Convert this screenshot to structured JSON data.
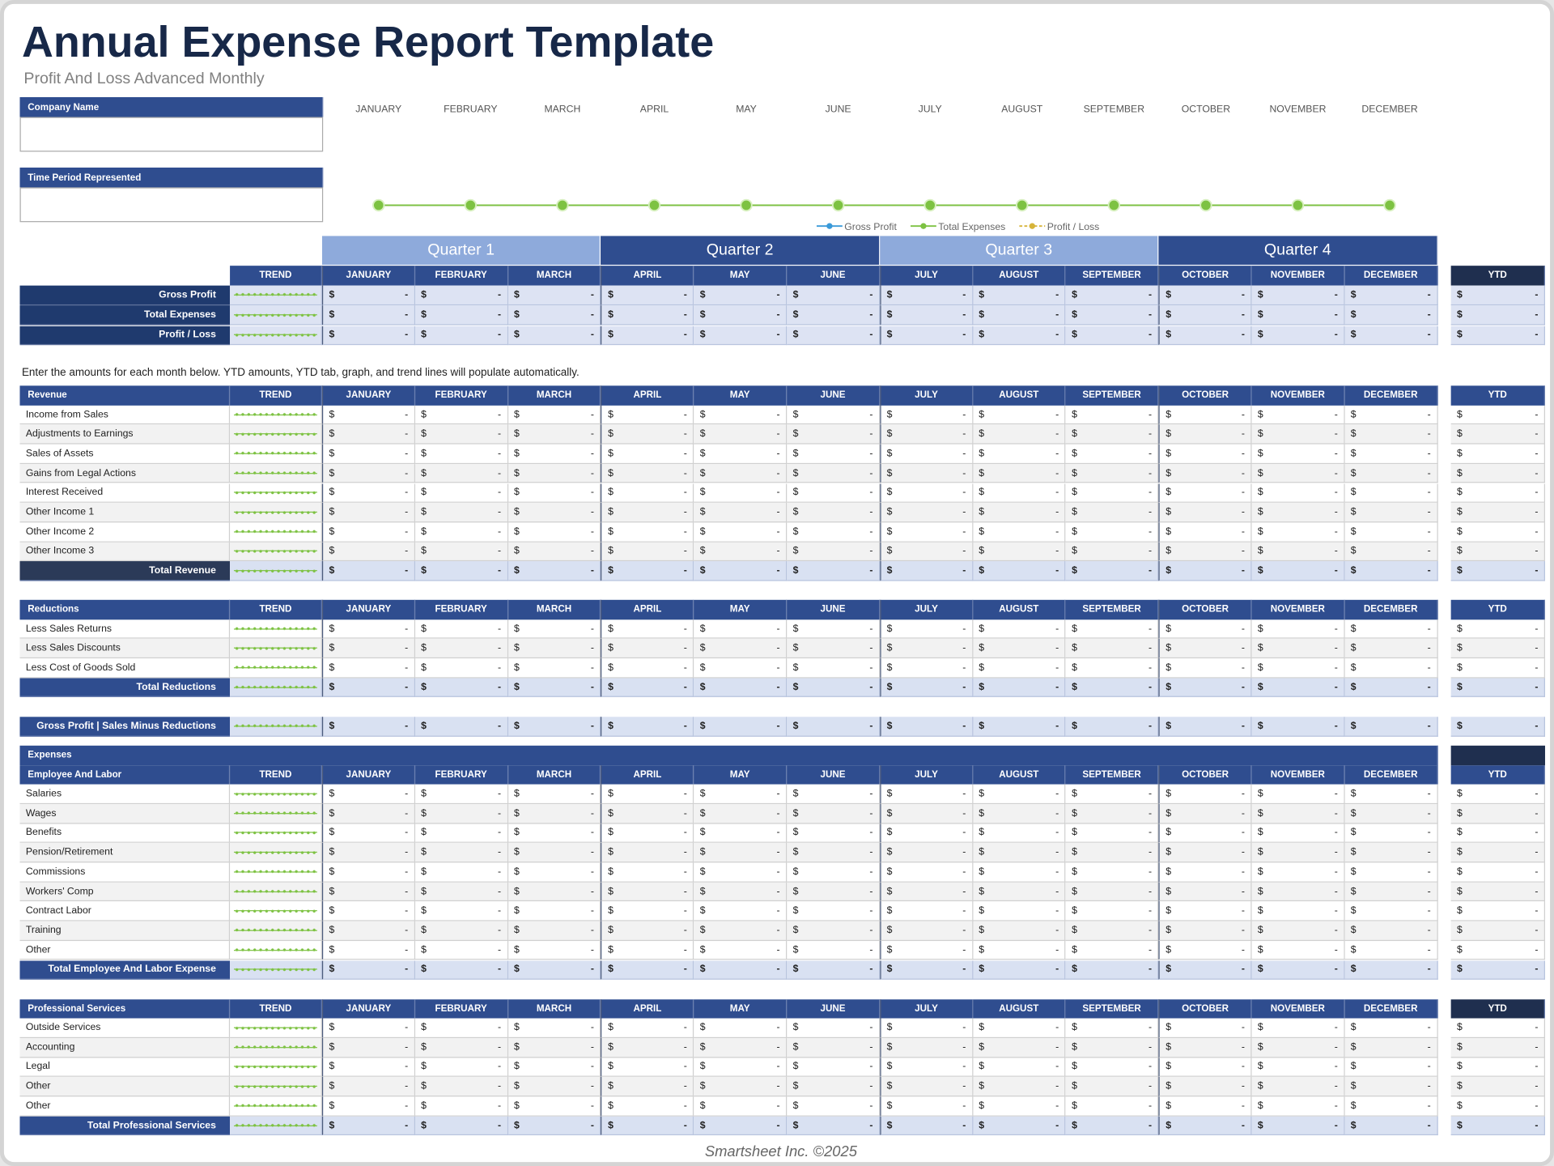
{
  "header": {
    "title": "Annual Expense Report Template",
    "subtitle": "Profit And Loss Advanced Monthly"
  },
  "company_name_label": "Company Name",
  "time_period_label": "Time Period Represented",
  "chart_data": {
    "type": "line",
    "categories": [
      "JANUARY",
      "FEBRUARY",
      "MARCH",
      "APRIL",
      "MAY",
      "JUNE",
      "JULY",
      "AUGUST",
      "SEPTEMBER",
      "OCTOBER",
      "NOVEMBER",
      "DECEMBER"
    ],
    "series": [
      {
        "name": "Gross Profit",
        "color": "#3a9ad9",
        "values": [
          0,
          0,
          0,
          0,
          0,
          0,
          0,
          0,
          0,
          0,
          0,
          0
        ]
      },
      {
        "name": "Profit / Loss",
        "color": "#d6b43a",
        "dashed": true,
        "values": [
          0,
          0,
          0,
          0,
          0,
          0,
          0,
          0,
          0,
          0,
          0,
          0
        ]
      },
      {
        "name": "Total Expenses",
        "color": "#7dc242",
        "values": [
          0,
          0,
          0,
          0,
          0,
          0,
          0,
          0,
          0,
          0,
          0,
          0
        ]
      }
    ],
    "legend": "bottom"
  },
  "quarters": [
    "Quarter 1",
    "Quarter 2",
    "Quarter 3",
    "Quarter 4"
  ],
  "columns": {
    "trend": "TREND",
    "ytd": "YTD"
  },
  "currency_symbol": "$",
  "blank_amount": "-",
  "summary_rows": [
    "Gross Profit",
    "Total Expenses",
    "Profit / Loss"
  ],
  "instructions": "Enter the amounts for each month below. YTD amounts, YTD tab, graph, and trend lines will populate automatically.",
  "revenue": {
    "title": "Revenue",
    "items": [
      "Income from Sales",
      "Adjustments to Earnings",
      "Sales of Assets",
      "Gains from Legal Actions",
      "Interest Received",
      "Other Income 1",
      "Other Income 2",
      "Other Income 3"
    ],
    "total": "Total Revenue"
  },
  "reductions": {
    "title": "Reductions",
    "items": [
      "Less Sales Returns",
      "Less Sales Discounts",
      "Less Cost of Goods Sold"
    ],
    "total": "Total Reductions"
  },
  "gross_profit_row": "Gross Profit  |  Sales Minus Reductions",
  "expenses": {
    "title": "Expenses",
    "employee": {
      "title": "Employee And Labor",
      "items": [
        "Salaries",
        "Wages",
        "Benefits",
        "Pension/Retirement",
        "Commissions",
        "Workers' Comp",
        "Contract Labor",
        "Training",
        "Other"
      ],
      "total": "Total Employee And Labor Expense"
    },
    "professional": {
      "title": "Professional Services",
      "items": [
        "Outside Services",
        "Accounting",
        "Legal",
        "Other",
        "Other"
      ],
      "total": "Total Professional Services"
    }
  },
  "footer": "Smartsheet Inc. ©2025"
}
